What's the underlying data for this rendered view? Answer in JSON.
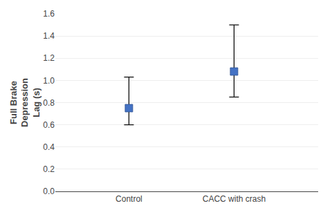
{
  "chart_data": {
    "type": "scatter",
    "categories": [
      "Control",
      "CACC with crash"
    ],
    "values": [
      0.75,
      1.08
    ],
    "ci_lower": [
      0.6,
      0.85
    ],
    "ci_upper": [
      1.03,
      1.5
    ],
    "color": "#4472C4",
    "marker": "square",
    "y_label": "Full Brake\nDepression\nLag (s)",
    "ylim": [
      0.0,
      1.6
    ],
    "yticks": [
      {
        "value": 0.0,
        "label": "0.0"
      },
      0.2,
      0.4,
      0.6,
      0.8,
      {
        "value": 1.0,
        "label": "1.0"
      },
      1.2,
      1.4,
      1.6
    ],
    "grid": true
  }
}
